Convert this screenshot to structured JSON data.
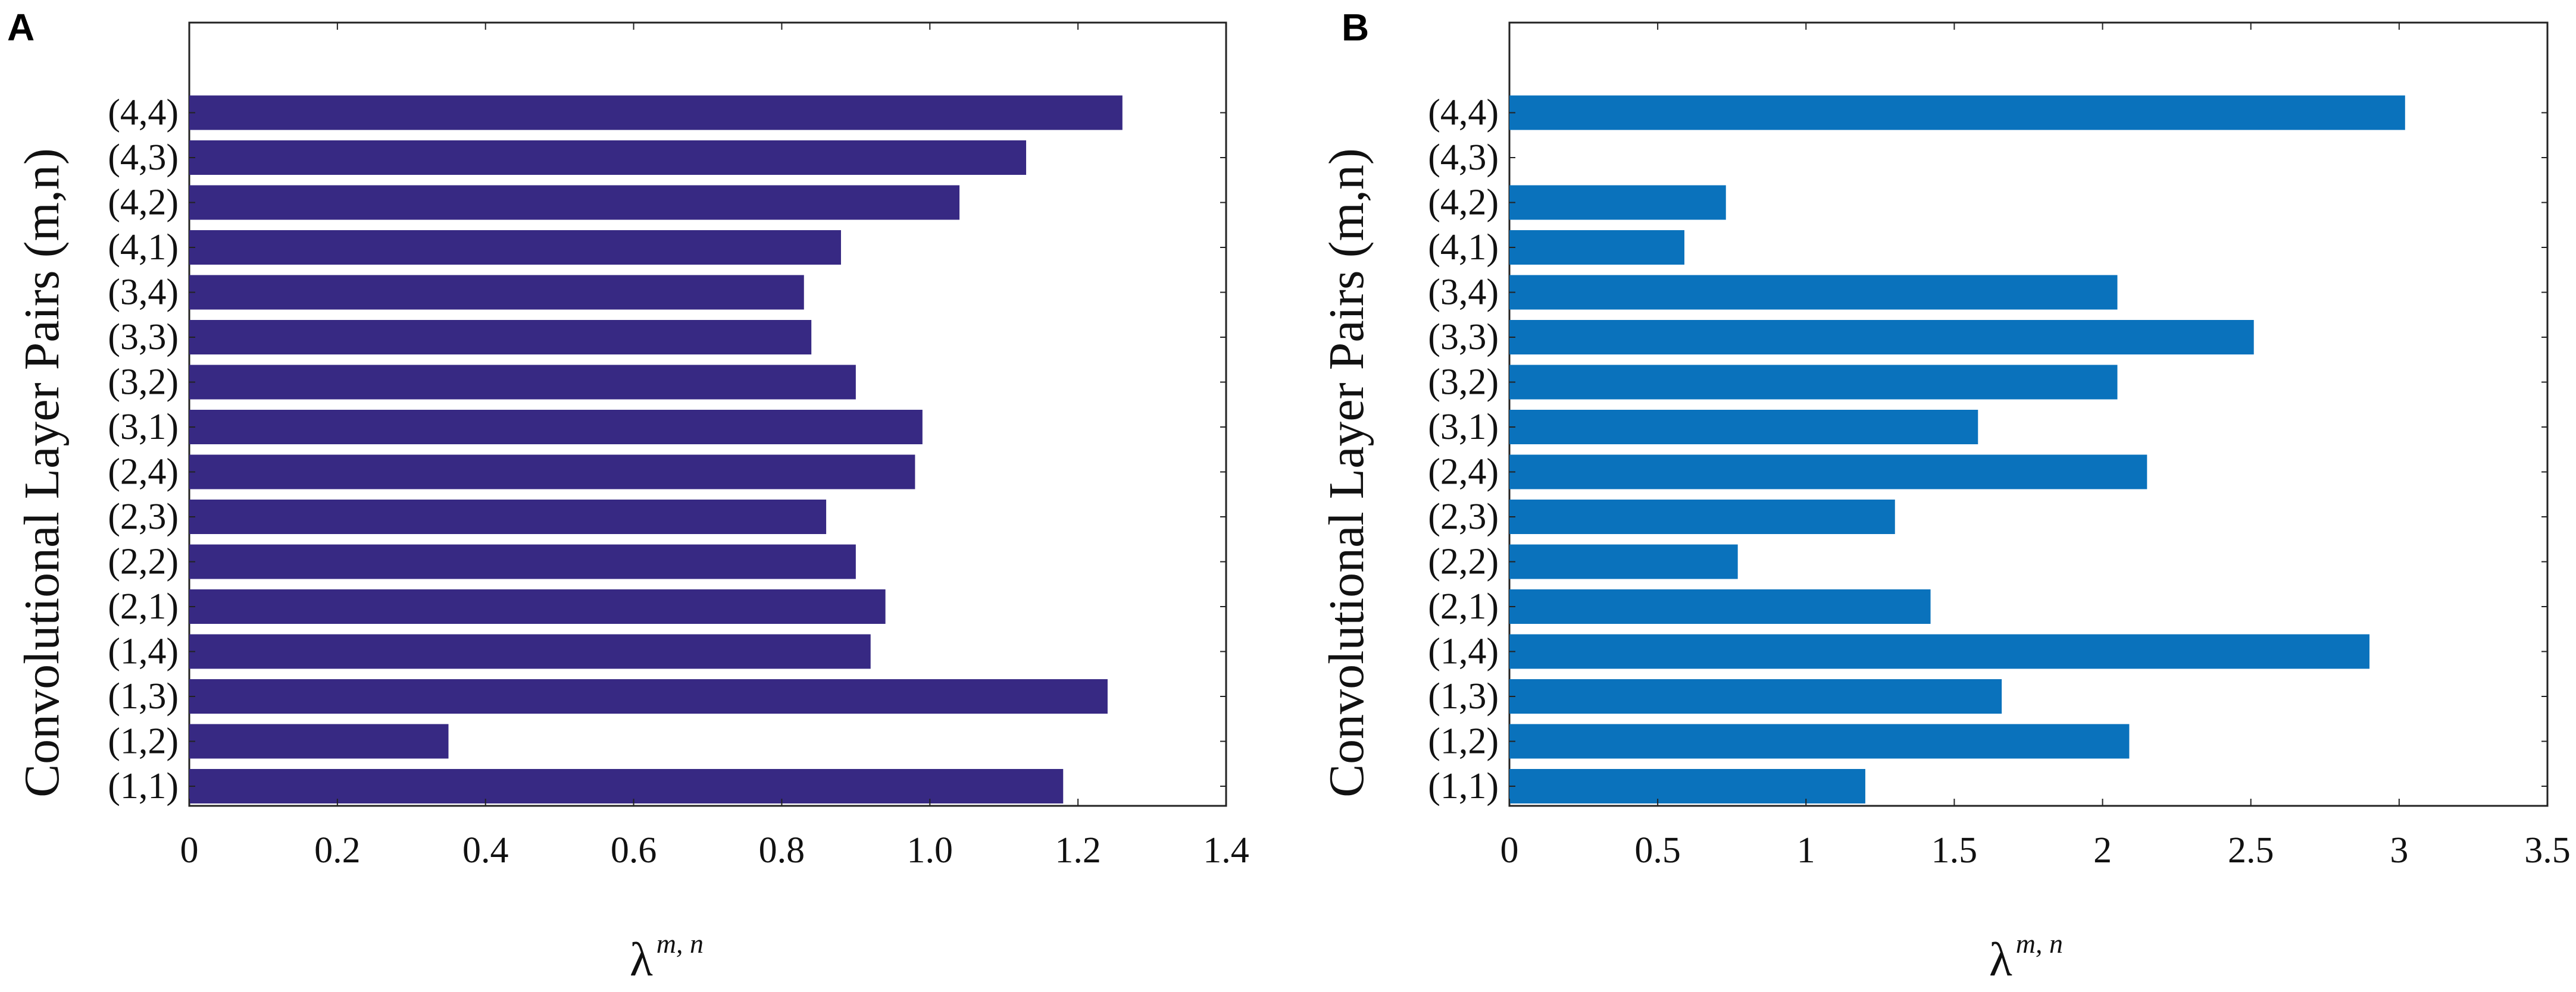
{
  "chart_data": [
    {
      "panel": "A",
      "type": "bar",
      "orientation": "horizontal",
      "color": "#372983",
      "categories": [
        "(1,1)",
        "(1,2)",
        "(1,3)",
        "(1,4)",
        "(2,1)",
        "(2,2)",
        "(2,3)",
        "(2,4)",
        "(3,1)",
        "(3,2)",
        "(3,3)",
        "(3,4)",
        "(4,1)",
        "(4,2)",
        "(4,3)",
        "(4,4)"
      ],
      "values": [
        1.18,
        0.35,
        1.24,
        0.92,
        0.94,
        0.9,
        0.86,
        0.98,
        0.99,
        0.9,
        0.84,
        0.83,
        0.88,
        1.04,
        1.13,
        1.26
      ],
      "xticks": [
        "0",
        "0.2",
        "0.4",
        "0.6",
        "0.8",
        "1.0",
        "1.2",
        "1.4"
      ],
      "xlim": [
        0,
        1.4
      ],
      "ylabel": "Convolutional Layer Pairs (m,n)",
      "xlabel_main": "λ",
      "xlabel_sup": "m, n"
    },
    {
      "panel": "B",
      "type": "bar",
      "orientation": "horizontal",
      "color": "#0a72bc",
      "categories": [
        "(1,1)",
        "(1,2)",
        "(1,3)",
        "(1,4)",
        "(2,1)",
        "(2,2)",
        "(2,3)",
        "(2,4)",
        "(3,1)",
        "(3,2)",
        "(3,3)",
        "(3,4)",
        "(4,1)",
        "(4,2)",
        "(4,3)",
        "(4,4)"
      ],
      "values": [
        1.2,
        2.09,
        1.66,
        2.9,
        1.42,
        0.77,
        1.3,
        2.15,
        1.58,
        2.05,
        2.51,
        2.05,
        0.59,
        0.73,
        0.0,
        3.02
      ],
      "xticks": [
        "0",
        "0.5",
        "1",
        "1.5",
        "2",
        "2.5",
        "3",
        "3.5"
      ],
      "xlim": [
        0,
        3.5
      ],
      "ylabel": "Convolutional Layer Pairs (m,n)",
      "xlabel_main": "λ",
      "xlabel_sup": "m, n"
    }
  ]
}
